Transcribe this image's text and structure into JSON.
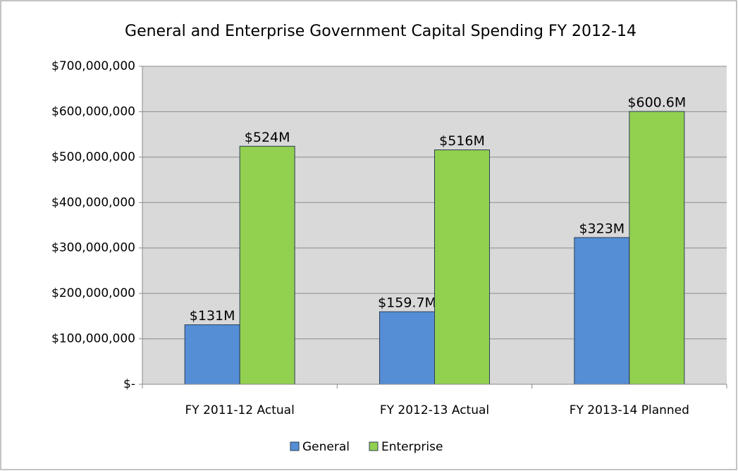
{
  "chart_data": {
    "type": "bar",
    "title": "General and Enterprise Government Capital Spending FY 2012-14",
    "categories": [
      "FY 2011-12 Actual",
      "FY 2012-13 Actual",
      "FY 2013-14 Planned"
    ],
    "series": [
      {
        "name": "General",
        "color": "#558ed5",
        "values": [
          131000000,
          159700000,
          323000000
        ],
        "value_labels": [
          "$131M",
          "$159.7M",
          "$323M"
        ]
      },
      {
        "name": "Enterprise",
        "color": "#92d050",
        "values": [
          524000000,
          516000000,
          600600000
        ],
        "value_labels": [
          "$524M",
          "$516M",
          "$600.6M"
        ]
      }
    ],
    "ylim": [
      0,
      700000000
    ],
    "yticks": [
      {
        "value": 0,
        "label": "$-"
      },
      {
        "value": 100000000,
        "label": "$100,000,000"
      },
      {
        "value": 200000000,
        "label": "$200,000,000"
      },
      {
        "value": 300000000,
        "label": "$300,000,000"
      },
      {
        "value": 400000000,
        "label": "$400,000,000"
      },
      {
        "value": 500000000,
        "label": "$500,000,000"
      },
      {
        "value": 600000000,
        "label": "$600,000,000"
      },
      {
        "value": 700000000,
        "label": "$700,000,000"
      }
    ],
    "grid": true,
    "legend": "bottom"
  }
}
